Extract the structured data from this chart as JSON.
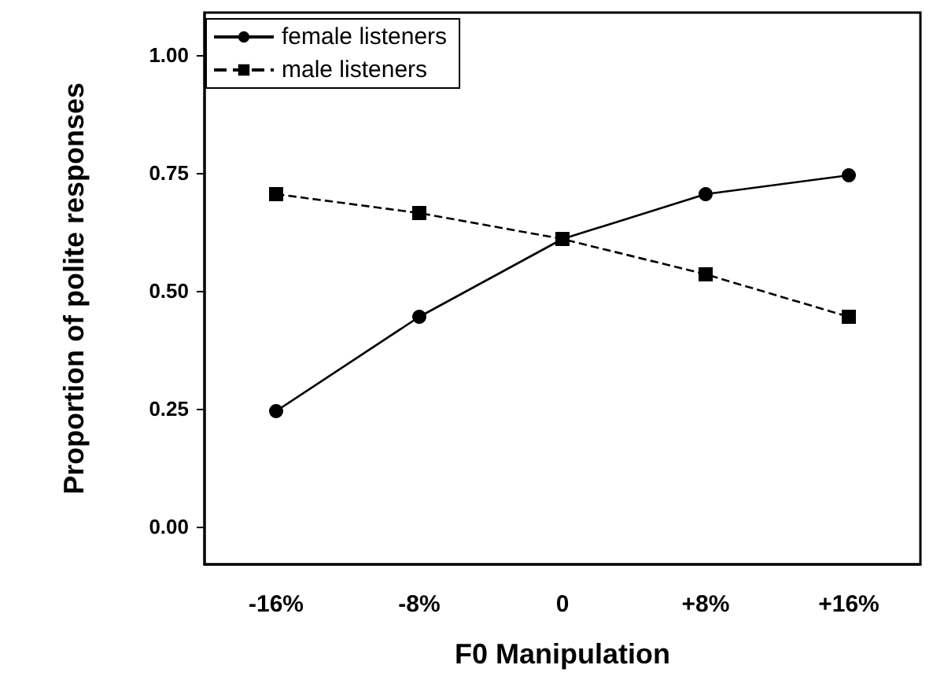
{
  "chart_data": {
    "type": "line",
    "xlabel": "F0 Manipulation",
    "ylabel": "Proportion of polite responses",
    "categories": [
      "-16%",
      "-8%",
      "0",
      "+8%",
      "+16%"
    ],
    "series": [
      {
        "name": "female listeners",
        "color": "#000000",
        "marker": "circle",
        "line_style": "solid",
        "values": [
          0.245,
          0.445,
          0.61,
          0.705,
          0.745
        ]
      },
      {
        "name": "male listeners",
        "color": "#000000",
        "marker": "square",
        "line_style": "dashed",
        "values": [
          0.705,
          0.665,
          0.61,
          0.535,
          0.445
        ]
      }
    ],
    "ylim": [
      -0.08,
      1.09
    ],
    "yticks": [
      {
        "value": 0,
        "label": "0.00"
      },
      {
        "value": 0.25,
        "label": "0.25"
      },
      {
        "value": 0.5,
        "label": "0.50"
      },
      {
        "value": 0.75,
        "label": "0.75"
      },
      {
        "value": 1,
        "label": "1.00"
      }
    ],
    "grid": false,
    "legend": "top left"
  }
}
